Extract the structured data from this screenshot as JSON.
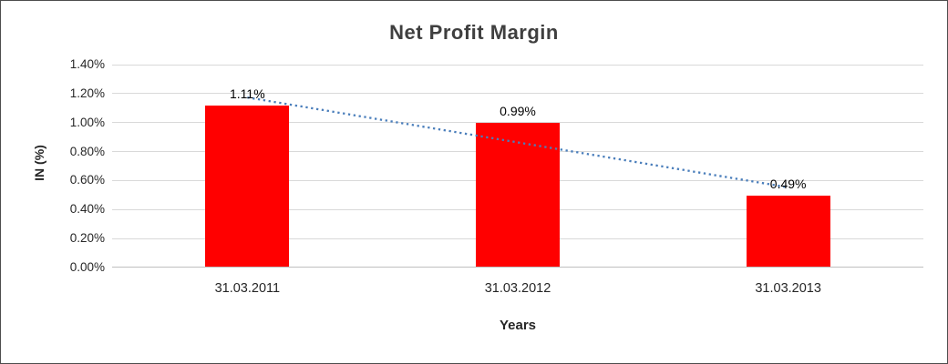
{
  "chart_data": {
    "type": "bar",
    "title": "Net Profit Margin",
    "xlabel": "Years",
    "ylabel": "IN (%)",
    "categories": [
      "31.03.2011",
      "31.03.2012",
      "31.03.2013"
    ],
    "values": [
      1.11,
      0.99,
      0.49
    ],
    "data_labels": [
      "1.11%",
      "0.99%",
      "0.49%"
    ],
    "ylim": [
      0,
      1.4
    ],
    "yticks": [
      {
        "value": 0.0,
        "label": "0.00%"
      },
      {
        "value": 0.2,
        "label": "0.20%"
      },
      {
        "value": 0.4,
        "label": "0.40%"
      },
      {
        "value": 0.6,
        "label": "0.60%"
      },
      {
        "value": 0.8,
        "label": "0.80%"
      },
      {
        "value": 1.0,
        "label": "1.00%"
      },
      {
        "value": 1.2,
        "label": "1.20%"
      },
      {
        "value": 1.4,
        "label": "1.40%"
      }
    ],
    "grid": true,
    "legend": "none",
    "bar_color": "#FF0000",
    "gridline_color": "#D9D9D9",
    "axis_line_color": "#BFBFBF",
    "text_color": "#262626",
    "title_color": "#3F3F3F",
    "trendline": {
      "type": "linear",
      "color": "#4A7EBB",
      "style": "dotted"
    }
  }
}
